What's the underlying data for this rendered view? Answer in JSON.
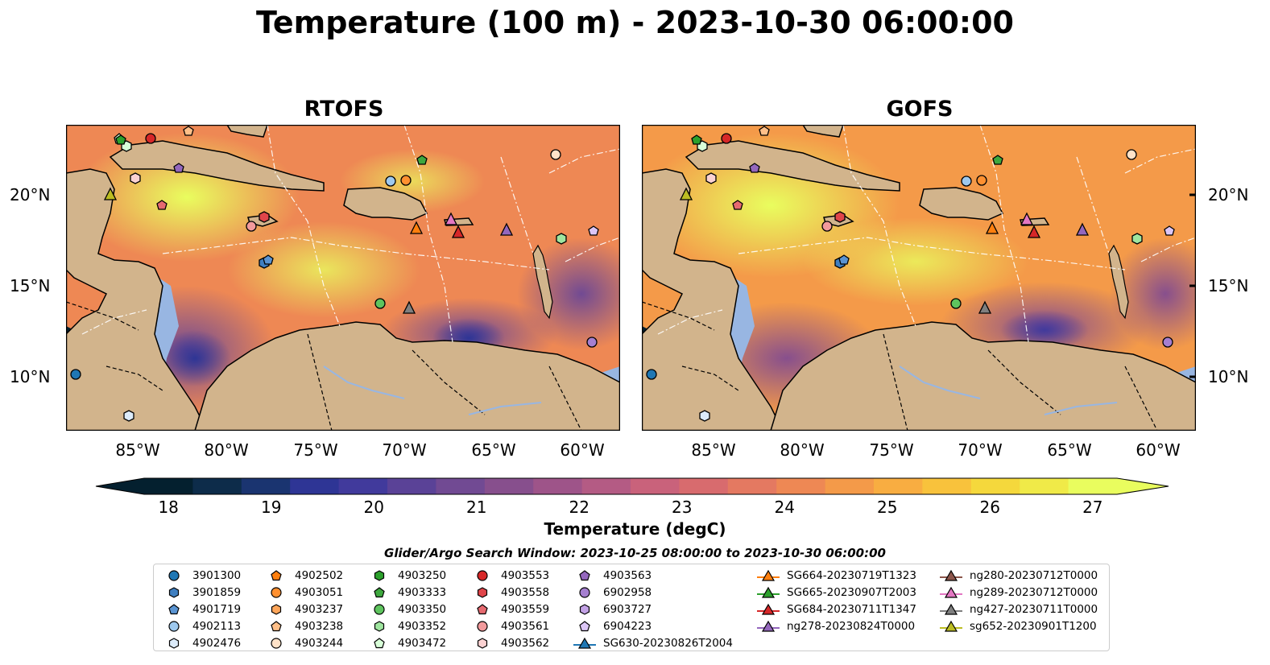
{
  "title": "Temperature (100 m) - 2023-10-30 06:00:00",
  "panels": [
    {
      "title": "RTOFS"
    },
    {
      "title": "GOFS"
    }
  ],
  "lat_ticks": [
    "20°N",
    "15°N",
    "10°N"
  ],
  "lon_ticks": [
    "85°W",
    "80°W",
    "75°W",
    "70°W",
    "65°W",
    "60°W"
  ],
  "colorbar": {
    "label": "Temperature (degC)",
    "ticks": [
      "18",
      "19",
      "20",
      "21",
      "22",
      "23",
      "24",
      "25",
      "26",
      "27"
    ],
    "range": [
      18,
      27
    ],
    "colors": [
      "#04202f",
      "#0d2c4a",
      "#1a3470",
      "#2e3595",
      "#413a9c",
      "#5a4297",
      "#714a93",
      "#874f8d",
      "#9e5489",
      "#b45b84",
      "#c9627b",
      "#d86b6e",
      "#e47961",
      "#ee8854",
      "#f49a49",
      "#f8ad41",
      "#f8c23c",
      "#f5d83c",
      "#f0ea48",
      "#e9fd5e"
    ]
  },
  "search_window": "Glider/Argo Search Window: 2023-10-25 08:00:00 to 2023-10-30 06:00:00",
  "legend": {
    "columns": [
      [
        {
          "label": "3901300",
          "marker": "circle",
          "color": "#1f77b4"
        },
        {
          "label": "3901859",
          "marker": "hexagon",
          "color": "#3f7fc0"
        },
        {
          "label": "4901719",
          "marker": "pentagon",
          "color": "#5a94d2"
        },
        {
          "label": "4902113",
          "marker": "circle",
          "color": "#9ec9ee"
        },
        {
          "label": "4902476",
          "marker": "hexagon",
          "color": "#dcebfa"
        }
      ],
      [
        {
          "label": "4902502",
          "marker": "pentagon",
          "color": "#ff7f0e"
        },
        {
          "label": "4903051",
          "marker": "circle",
          "color": "#ff9030"
        },
        {
          "label": "4903237",
          "marker": "hexagon",
          "color": "#ffa65a"
        },
        {
          "label": "4903238",
          "marker": "pentagon",
          "color": "#ffbf88"
        },
        {
          "label": "4903244",
          "marker": "circle",
          "color": "#ffe2c8"
        }
      ],
      [
        {
          "label": "4903250",
          "marker": "hexagon",
          "color": "#2ca02c"
        },
        {
          "label": "4903333",
          "marker": "pentagon",
          "color": "#3ea83e"
        },
        {
          "label": "4903350",
          "marker": "circle",
          "color": "#5ec45e"
        },
        {
          "label": "4903352",
          "marker": "hexagon",
          "color": "#9fe59f"
        },
        {
          "label": "4903472",
          "marker": "pentagon",
          "color": "#d8ffd8"
        }
      ],
      [
        {
          "label": "4903553",
          "marker": "circle",
          "color": "#d62728"
        },
        {
          "label": "4903558",
          "marker": "hexagon",
          "color": "#e0454a"
        },
        {
          "label": "4903559",
          "marker": "pentagon",
          "color": "#e66a70"
        },
        {
          "label": "4903561",
          "marker": "circle",
          "color": "#f29a9c"
        },
        {
          "label": "4903562",
          "marker": "hexagon",
          "color": "#fbd2d2"
        }
      ],
      [
        {
          "label": "4903563",
          "marker": "pentagon",
          "color": "#9467bd"
        },
        {
          "label": "6902958",
          "marker": "circle",
          "color": "#a57fd0"
        },
        {
          "label": "6903727",
          "marker": "hexagon",
          "color": "#c3a2e6"
        },
        {
          "label": "6904223",
          "marker": "pentagon",
          "color": "#dcc6f6"
        },
        {
          "label": "SG630-20230826T2004",
          "marker": "triangle-line",
          "color": "#1f77b4"
        }
      ],
      [
        {
          "label": "SG664-20230719T1323",
          "marker": "triangle-line",
          "color": "#ff7f0e"
        },
        {
          "label": "SG665-20230907T2003",
          "marker": "triangle-line",
          "color": "#2ca02c"
        },
        {
          "label": "SG684-20230711T1347",
          "marker": "triangle-line",
          "color": "#d62728"
        },
        {
          "label": "ng278-20230824T0000",
          "marker": "triangle-line",
          "color": "#9467bd"
        }
      ],
      [
        {
          "label": "ng280-20230712T0000",
          "marker": "triangle-line",
          "color": "#8c564b"
        },
        {
          "label": "ng289-20230712T0000",
          "marker": "triangle-line",
          "color": "#e377c2"
        },
        {
          "label": "ng427-20230711T0000",
          "marker": "triangle-line",
          "color": "#7f7f7f"
        },
        {
          "label": "sg652-20230901T1200",
          "marker": "triangle-line",
          "color": "#bcbd22"
        }
      ]
    ]
  }
}
